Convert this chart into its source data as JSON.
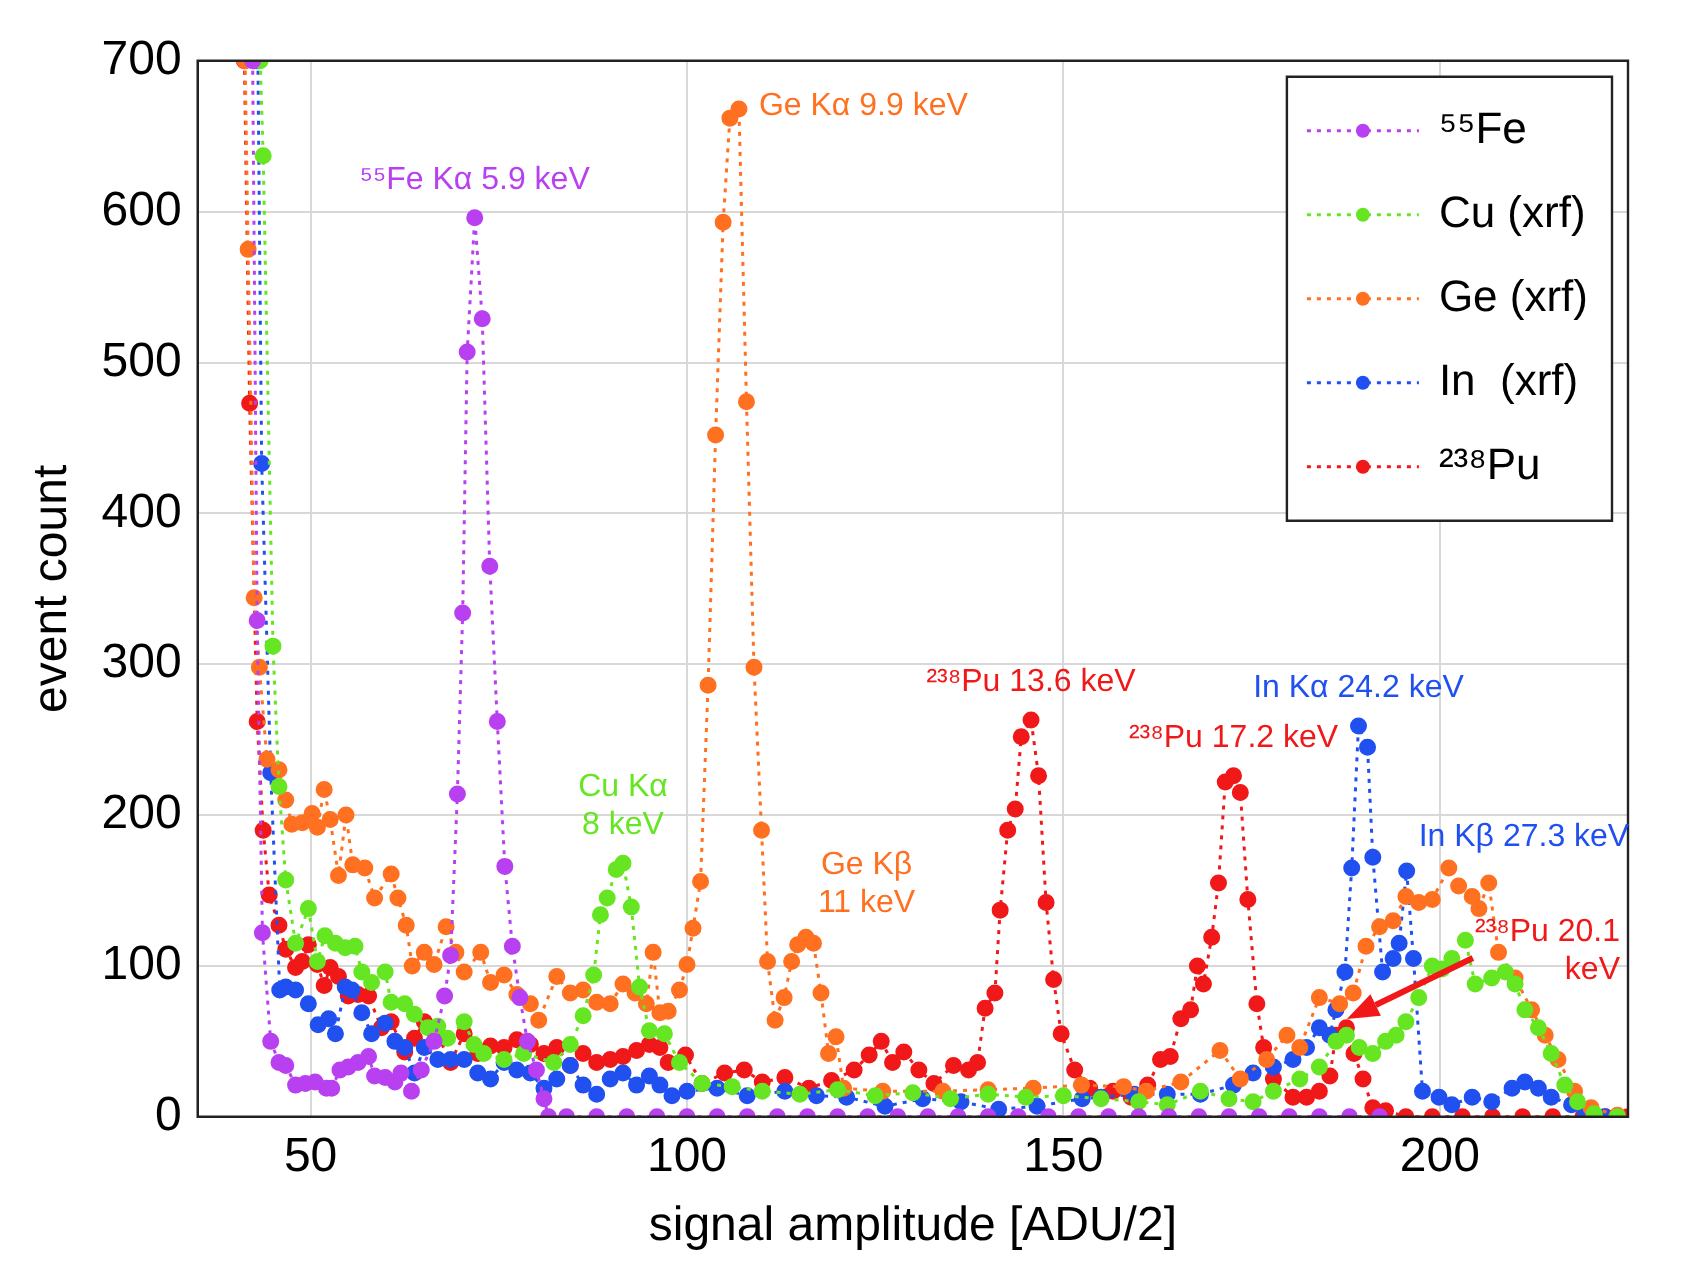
{
  "chart_data": {
    "type": "line",
    "xlabel": "signal amplitude [ADU/2]",
    "ylabel": "event count",
    "xlim": [
      35,
      225
    ],
    "xticks": [
      50,
      100,
      150,
      200
    ],
    "ylim": [
      0,
      700
    ],
    "yticks": [
      0,
      100,
      200,
      300,
      400,
      500,
      600,
      700
    ],
    "grid": true,
    "legend": "top right",
    "marker": "circle",
    "line_style": "dotted",
    "series": [
      {
        "name": "⁵⁵Fe",
        "color": "#b840f0",
        "x": [
          42.3,
          42.9,
          43.6,
          44.7,
          45.8,
          46.7,
          48,
          49.3,
          50.6,
          52.1,
          52.8,
          53.9,
          55,
          56.3,
          57.7,
          58.5,
          59.9,
          61.2,
          62,
          63.4,
          64.7,
          66.4,
          67.8,
          68.6,
          69.5,
          70.2,
          70.8,
          71.8,
          72.8,
          73.8,
          74.8,
          75.8,
          76.8,
          77.8,
          78.8,
          80,
          81,
          81.6,
          84,
          88,
          92,
          96,
          100,
          104,
          108,
          112,
          116,
          120,
          124,
          128,
          132,
          136,
          140,
          144,
          148,
          152,
          156,
          160,
          164,
          168,
          172,
          176,
          180,
          184,
          188,
          192
        ],
        "values": [
          700,
          329,
          122,
          50,
          36,
          34,
          21,
          22,
          23,
          19,
          19,
          31,
          33,
          36,
          40,
          27,
          26,
          23,
          29,
          17,
          31,
          50,
          80,
          107,
          214,
          334,
          507,
          596,
          529,
          365,
          262,
          166,
          113,
          79,
          50,
          31,
          12,
          0,
          0,
          0,
          0,
          0,
          0,
          0,
          0,
          0,
          0,
          0,
          0,
          0,
          0,
          0,
          0,
          0,
          0,
          0,
          0,
          0,
          0,
          0,
          0,
          0,
          0,
          0,
          0,
          0
        ]
      },
      {
        "name": "Cu (xrf)",
        "color": "#66e622",
        "x": [
          43.3,
          43.7,
          45,
          45.8,
          46.7,
          48,
          49.7,
          50.9,
          51.9,
          53.3,
          54.6,
          55.9,
          56.8,
          58.1,
          59.9,
          60.7,
          62.5,
          63.8,
          65.6,
          66.9,
          68.2,
          70.4,
          71.7,
          73,
          75.7,
          78.3,
          82.3,
          84.5,
          86.2,
          87.6,
          88.5,
          89.4,
          90.6,
          91.5,
          92.6,
          93.7,
          95,
          97,
          99,
          102,
          106,
          110,
          115,
          120,
          125,
          130,
          135,
          140,
          145,
          150,
          155,
          160,
          163.8,
          168.2,
          172,
          175.2,
          177.9,
          181.4,
          184,
          186.2,
          187.6,
          189.3,
          191.1,
          192.8,
          194.2,
          195.5,
          197.2,
          199,
          200.3,
          201.6,
          203.4,
          204.7,
          206.9,
          208.7,
          210,
          211.3,
          213.1,
          214.8,
          216.6,
          218.3,
          220.5,
          223.6
        ],
        "values": [
          700,
          637,
          312,
          219,
          157,
          115,
          138,
          103,
          120,
          115,
          112,
          113,
          96,
          89,
          96,
          76,
          75,
          68,
          59,
          60,
          52,
          63,
          48,
          42,
          38,
          42,
          36,
          48,
          67,
          94,
          134,
          145,
          164,
          168,
          139,
          86,
          57,
          55,
          36,
          22,
          20,
          17,
          15,
          18,
          14,
          16,
          12,
          15,
          13,
          14,
          12,
          10,
          8,
          17,
          12,
          10,
          17,
          25,
          33,
          50,
          54,
          46,
          42,
          50,
          54,
          63,
          79,
          100,
          98,
          105,
          117,
          88,
          92,
          96,
          88,
          71,
          59,
          42,
          21,
          10,
          2,
          0
        ]
      },
      {
        "name": "Ge (xrf)",
        "color": "#ff7020",
        "x": [
          41.3,
          41.7,
          42.5,
          43.2,
          44.2,
          45.8,
          46.7,
          47.5,
          48.9,
          50.2,
          50.9,
          51.8,
          52.6,
          53.7,
          54.7,
          55.6,
          57.2,
          58.5,
          60.7,
          61.6,
          62.7,
          63.5,
          65.1,
          66.4,
          68,
          69.3,
          70.4,
          72.6,
          73.9,
          75.7,
          77.4,
          79.2,
          80.3,
          82.7,
          84.5,
          86.2,
          88,
          89.8,
          91.5,
          93.1,
          94.6,
          95.5,
          96.4,
          97.5,
          99,
          100,
          100.8,
          101.8,
          102.8,
          103.8,
          104.8,
          105.7,
          106.9,
          107.9,
          108.9,
          109.9,
          110.7,
          111.7,
          112.9,
          113.9,
          114.7,
          115.8,
          116.8,
          117.8,
          118.8,
          119.8,
          120.8,
          126,
          134,
          140,
          146,
          152.4,
          158,
          161,
          165.6,
          170.8,
          173.5,
          177,
          179.7,
          181.4,
          184,
          186.7,
          188.5,
          190.2,
          192,
          193.8,
          195.5,
          197.2,
          199,
          201.2,
          202.5,
          204.3,
          205.2,
          206.5,
          207.8,
          210,
          212.2,
          214,
          215.7,
          217.9,
          220.1,
          223.6
        ],
        "values": [
          700,
          575,
          344,
          298,
          237,
          230,
          210,
          194,
          195,
          201,
          192,
          217,
          197,
          160,
          200,
          167,
          165,
          145,
          161,
          145,
          127,
          100,
          109,
          101,
          126,
          109,
          96,
          109,
          89,
          94,
          81,
          75,
          64,
          93,
          82,
          84,
          76,
          75,
          88,
          82,
          75,
          109,
          69,
          70,
          84,
          101,
          125,
          156,
          286,
          452,
          593,
          662,
          668,
          474,
          298,
          190,
          103,
          64,
          79,
          103,
          114,
          119,
          115,
          82,
          42,
          53,
          19,
          17,
          17,
          18,
          19,
          21,
          20,
          17,
          23,
          44,
          25,
          38,
          54,
          46,
          79,
          75,
          82,
          113,
          126,
          130,
          146,
          142,
          144,
          165,
          153,
          146,
          138,
          155,
          109,
          92,
          71,
          54,
          38,
          17,
          6,
          1
        ]
      },
      {
        "name": "In  (xrf)",
        "color": "#2050f0",
        "x": [
          43,
          43.5,
          44.7,
          45.9,
          46.7,
          48,
          49.7,
          51,
          52.4,
          53.3,
          54.6,
          55.5,
          56.8,
          58.1,
          59.9,
          61.2,
          62.5,
          63.8,
          65.1,
          66.9,
          68.6,
          70.4,
          72.2,
          73.9,
          75.7,
          77.4,
          79.2,
          81,
          82.7,
          84.5,
          86.2,
          88,
          89.8,
          91.5,
          93.3,
          95,
          96.4,
          98,
          100,
          104,
          108,
          113,
          117.2,
          121.2,
          126.3,
          131.3,
          136.4,
          141.4,
          146.5,
          152.5,
          155,
          159.4,
          163.8,
          168.2,
          172.6,
          175.2,
          177.9,
          180.5,
          182.3,
          184,
          185.4,
          186.2,
          187.4,
          188.3,
          189.2,
          190.4,
          191.1,
          192.4,
          193.8,
          194.6,
          195.6,
          196.5,
          197.7,
          199.9,
          201.6,
          204.3,
          206.9,
          209.6,
          211.3,
          213.1,
          214.8,
          217.5,
          219.3,
          221.9
        ],
        "values": [
          700,
          433,
          228,
          84,
          86,
          84,
          75,
          61,
          65,
          55,
          86,
          84,
          69,
          55,
          62,
          50,
          46,
          29,
          46,
          38,
          38,
          38,
          29,
          25,
          36,
          31,
          29,
          19,
          25,
          34,
          21,
          15,
          25,
          29,
          21,
          27,
          21,
          14,
          17,
          19,
          14,
          17,
          14,
          13,
          7,
          12,
          10,
          5,
          7,
          12,
          13,
          15,
          15,
          15,
          21,
          29,
          33,
          38,
          46,
          59,
          54,
          71,
          96,
          165,
          259,
          245,
          172,
          96,
          105,
          115,
          163,
          105,
          17,
          13,
          8,
          13,
          10,
          19,
          23,
          19,
          13,
          8,
          3,
          0
        ]
      },
      {
        "name": "²³⁸Pu",
        "color": "#f01818",
        "x": [
          41.2,
          41.9,
          42.9,
          43.7,
          44.5,
          45.8,
          46.7,
          48,
          48.9,
          49.7,
          50.9,
          51.8,
          52.6,
          53.7,
          55,
          56.3,
          57.7,
          59.4,
          60.7,
          62.5,
          63.8,
          65.1,
          66.9,
          68.6,
          70.4,
          72.2,
          73.9,
          75.7,
          77.4,
          79.2,
          81,
          82.7,
          84.5,
          86.2,
          88,
          89.8,
          91.5,
          93.3,
          95,
          96.4,
          97.5,
          99.8,
          102,
          105,
          107.6,
          110,
          113,
          116.2,
          119.2,
          122.2,
          124.2,
          125.8,
          127.3,
          128.8,
          130.8,
          132.8,
          135.4,
          137.4,
          138.6,
          139.6,
          140.9,
          141.6,
          142.6,
          143.6,
          144.4,
          145.7,
          146.7,
          147.7,
          148.7,
          149.7,
          151.5,
          153.5,
          156.6,
          159,
          161.2,
          162.9,
          164.2,
          165.6,
          166.9,
          167.8,
          168.6,
          169.7,
          170.6,
          171.5,
          172.6,
          173.5,
          174.5,
          175.7,
          176.6,
          177.9,
          180.5,
          182.3,
          184,
          185.4,
          186.2,
          187.6,
          188.6,
          189.8,
          191.1,
          192.8,
          195.5,
          199,
          203,
          207,
          211,
          215,
          219,
          222,
          225
        ],
        "values": [
          700,
          473,
          262,
          190,
          147,
          127,
          111,
          99,
          103,
          114,
          101,
          87,
          99,
          93,
          80,
          81,
          80,
          59,
          63,
          43,
          52,
          63,
          54,
          36,
          55,
          42,
          47,
          46,
          51,
          48,
          42,
          46,
          34,
          42,
          36,
          38,
          40,
          44,
          48,
          46,
          36,
          41,
          22,
          29,
          31,
          23,
          26,
          19,
          24,
          31,
          41,
          50,
          36,
          43,
          31,
          22,
          34,
          31,
          36,
          72,
          82,
          137,
          190,
          204,
          252,
          263,
          226,
          142,
          91,
          55,
          31,
          19,
          17,
          13,
          21,
          38,
          40,
          65,
          71,
          100,
          88,
          119,
          155,
          222,
          226,
          215,
          144,
          75,
          46,
          25,
          13,
          13,
          17,
          27,
          54,
          59,
          42,
          25,
          6,
          4,
          0,
          0,
          0,
          0,
          0,
          0,
          0,
          0,
          0
        ]
      }
    ],
    "annotations": [
      {
        "text": "⁵⁵Fe Kα 5.9 keV",
        "x": 71.8,
        "y": 596
      },
      {
        "text": "Cu Kα\n8 keV",
        "x": 91.5,
        "y": 168
      },
      {
        "text": "Ge Kα 9.9 keV",
        "x": 106.9,
        "y": 668
      },
      {
        "text": "Ge Kβ\n11 keV",
        "x": 115.8,
        "y": 119
      },
      {
        "text": "²³⁸Pu 13.6 keV",
        "x": 145.7,
        "y": 263
      },
      {
        "text": "²³⁸Pu 17.2 keV",
        "x": 172.6,
        "y": 226
      },
      {
        "text": "In Kα 24.2 keV",
        "x": 189.2,
        "y": 259
      },
      {
        "text": "In Kβ 27.3 keV",
        "x": 195.6,
        "y": 163
      },
      "²³⁸Pu 20.1\nkeV"
    ]
  }
}
